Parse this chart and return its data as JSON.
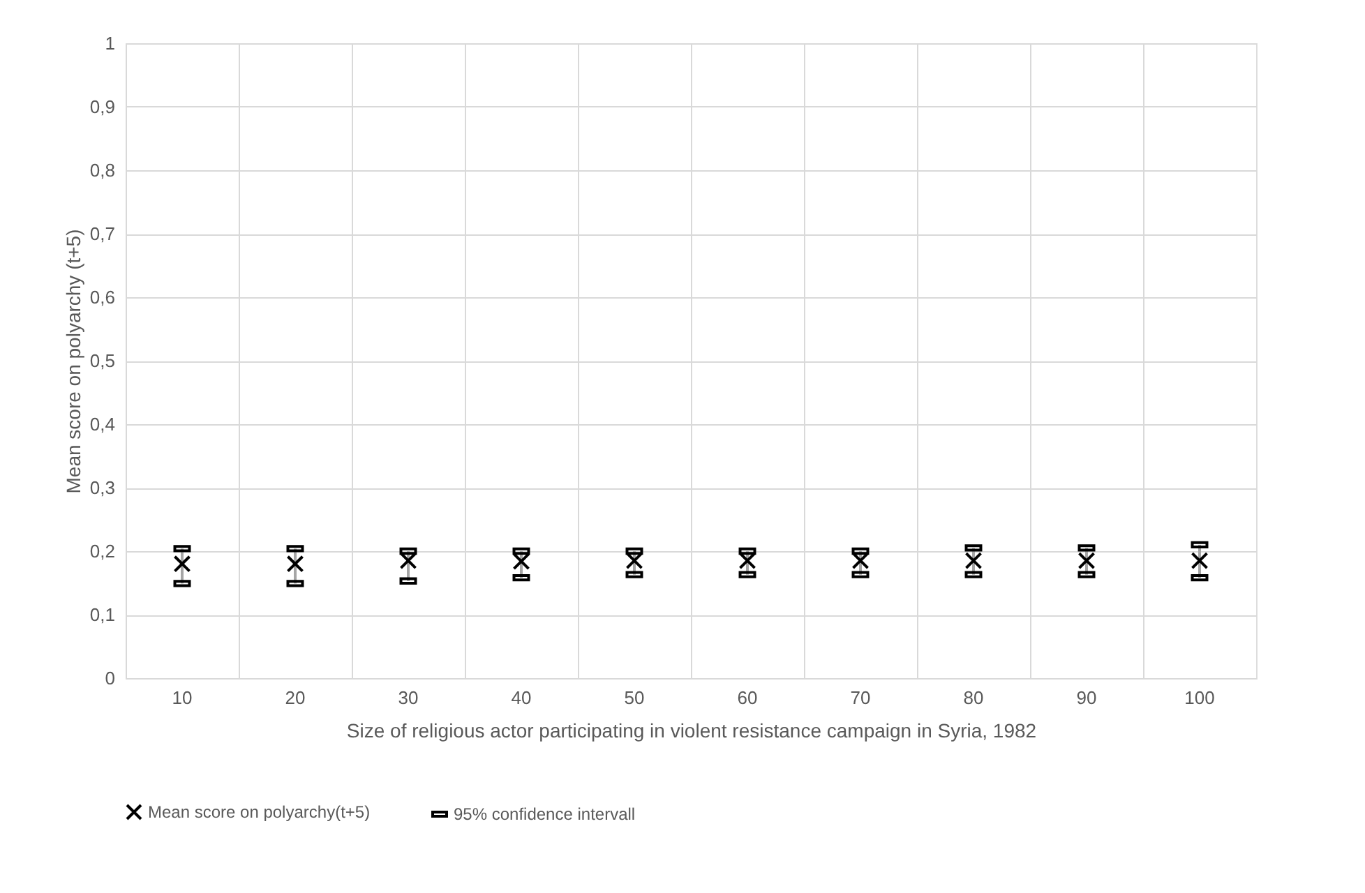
{
  "chart_data": {
    "type": "scatter",
    "xlabel": "Size of religious actor participating in violent resistance campaign in Syria, 1982",
    "ylabel": "Mean score on polyarchy (t+5)",
    "categories": [
      "10",
      "20",
      "30",
      "40",
      "50",
      "60",
      "70",
      "80",
      "90",
      "100"
    ],
    "series": [
      {
        "name": "Mean score on polyarchy(t+5)",
        "color": "#000000",
        "marker": "cross",
        "values": [
          0.18,
          0.18,
          0.185,
          0.184,
          0.185,
          0.185,
          0.185,
          0.185,
          0.185,
          0.185
        ]
      },
      {
        "name": "95% confidence intervall",
        "color": "#000000",
        "values": [
          0.149,
          0.149,
          0.153,
          0.158,
          0.163,
          0.163,
          0.163,
          0.163,
          0.163,
          0.158
        ]
      },
      {
        "color": "#000000",
        "values": [
          0.204,
          0.204,
          0.2,
          0.2,
          0.2,
          0.2,
          0.2,
          0.205,
          0.205,
          0.21
        ]
      }
    ],
    "ylim": [
      0,
      1
    ],
    "yticks": [
      {
        "value": 0,
        "label": "0"
      },
      {
        "value": 0.1,
        "label": "0,1"
      },
      {
        "value": 0.2,
        "label": "0,2"
      },
      {
        "value": 0.3,
        "label": "0,3"
      },
      {
        "value": 0.4,
        "label": "0,4"
      },
      {
        "value": 0.5,
        "label": "0,5"
      },
      {
        "value": 0.6,
        "label": "0,6"
      },
      {
        "value": 0.7,
        "label": "0,7"
      },
      {
        "value": 0.8,
        "label": "0,8"
      },
      {
        "value": 0.9,
        "label": "0,9"
      },
      {
        "value": 1,
        "label": "1"
      }
    ],
    "grid": true,
    "legend": "bottom"
  }
}
